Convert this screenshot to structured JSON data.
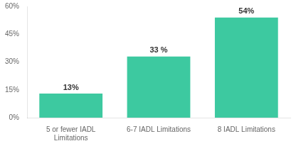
{
  "chart_data": {
    "type": "bar",
    "categories": [
      "5 or fewer IADL\nLimitations",
      "6-7 IADL Limitations",
      "8 IADL Limitations"
    ],
    "values": [
      13,
      33,
      54
    ],
    "value_labels": [
      "13%",
      "33 %",
      "54%"
    ],
    "data_labels": true,
    "color": "#3DC9A0",
    "ylim": [
      0,
      60
    ],
    "yticks": [
      {
        "value": 0,
        "label": "0%"
      },
      {
        "value": 15,
        "label": "15%"
      },
      {
        "value": 30,
        "label": "30%"
      },
      {
        "value": 45,
        "label": "45%"
      },
      {
        "value": 60,
        "label": "60%"
      }
    ],
    "grid": false
  }
}
